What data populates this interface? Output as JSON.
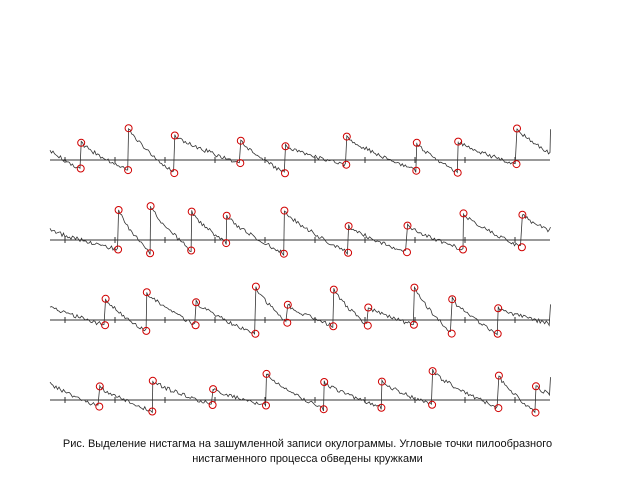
{
  "figure": {
    "caption_lines": [
      "Рис. Выделение нистагма на зашумленной записи окулограммы. Угловые точки пилообразного",
      "нистагменного процесса обведены кружками"
    ]
  }
}
